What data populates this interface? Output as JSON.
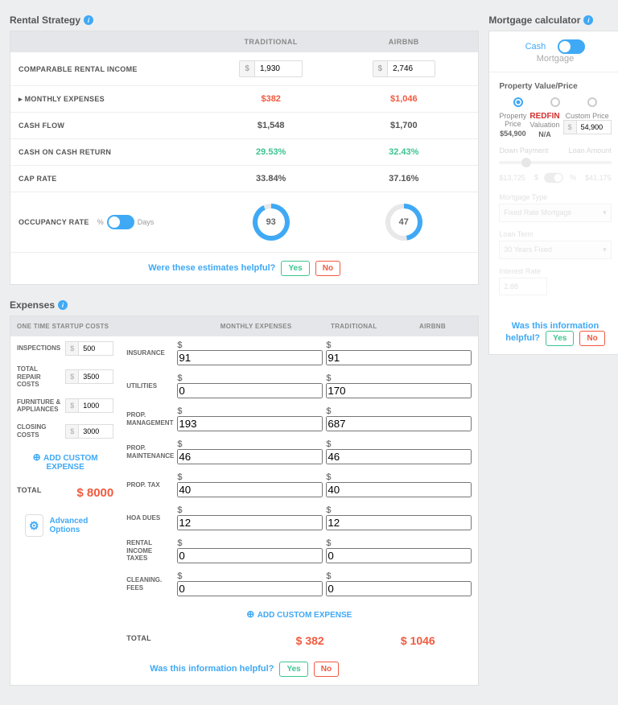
{
  "rental": {
    "title": "Rental Strategy",
    "col1": "TRADITIONAL",
    "col2": "AIRBNB",
    "income_label": "COMPARABLE RENTAL INCOME",
    "income_trad": "1,930",
    "income_air": "2,746",
    "expenses_label": "▸ MONTHLY EXPENSES",
    "expenses_trad": "$382",
    "expenses_air": "$1,046",
    "cashflow_label": "CASH FLOW",
    "cashflow_trad": "$1,548",
    "cashflow_air": "$1,700",
    "coc_label": "CASH ON CASH RETURN",
    "coc_trad": "29.53%",
    "coc_air": "32.43%",
    "cap_label": "CAP RATE",
    "cap_trad": "33.84%",
    "cap_air": "37.16%",
    "occ_label": "OCCUPANCY RATE",
    "occ_pct": "%",
    "occ_days": "Days",
    "occ_trad": "93",
    "occ_air": "47",
    "helpful": "Were these estimates helpful?",
    "yes": "Yes",
    "no": "No"
  },
  "expenses": {
    "title": "Expenses",
    "startup_head": "ONE TIME STARTUP COSTS",
    "monthly_head": "MONTHLY EXPENSES",
    "trad_head": "TRADITIONAL",
    "air_head": "AIRBNB",
    "inspections": "INSPECTIONS",
    "inspections_v": "500",
    "repair": "TOTAL REPAIR COSTS",
    "repair_v": "3500",
    "furniture": "FURNITURE & APPLIANCES",
    "furniture_v": "1000",
    "closing": "CLOSING COSTS",
    "closing_v": "3000",
    "add": "ADD CUSTOM EXPENSE",
    "total_label": "TOTAL",
    "total_startup": "$ 8000",
    "insurance": "INSURANCE",
    "insurance_t": "91",
    "insurance_a": "91",
    "utilities": "UTILITIES",
    "utilities_t": "0",
    "utilities_a": "170",
    "propmgmt": "PROP. MANAGEMENT",
    "propmgmt_t": "193",
    "propmgmt_a": "687",
    "propmaint": "PROP. MAINTENANCE",
    "propmaint_t": "46",
    "propmaint_a": "46",
    "proptax": "PROP. TAX",
    "proptax_t": "40",
    "proptax_a": "40",
    "hoa": "HOA DUES",
    "hoa_t": "12",
    "hoa_a": "12",
    "rentax": "RENTAL INCOME TAXES",
    "rentax_t": "0",
    "rentax_a": "0",
    "cleaning": "CLEANING. FEES",
    "cleaning_t": "0",
    "cleaning_a": "0",
    "total_t": "$ 382",
    "total_a": "$ 1046",
    "adv": "Advanced Options",
    "helpful": "Was this information helpful?"
  },
  "mortgage": {
    "title": "Mortgage calculator",
    "cash": "Cash",
    "mort": "Mortgage",
    "pv_label": "Property Value/Price",
    "prop_price": "Property Price",
    "prop_price_v": "$54,900",
    "valuation": "Valuation",
    "valuation_v": "N/A",
    "redfin": "REDFIN",
    "custom": "Custom Price",
    "custom_v": "54,900",
    "dp": "Down Payment",
    "la": "Loan Amount",
    "dp_v": "$13,725",
    "la_v": "$41,175",
    "mtype": "Mortgage Type",
    "mtype_v": "Fixed Rate Mortgage",
    "lterm": "Loan Term",
    "lterm_v": "30 Years Fixed",
    "irate": "Interest Rate",
    "irate_v": "2.88",
    "helpful": "Was this information helpful?",
    "pct": "%",
    "cur": "$"
  }
}
